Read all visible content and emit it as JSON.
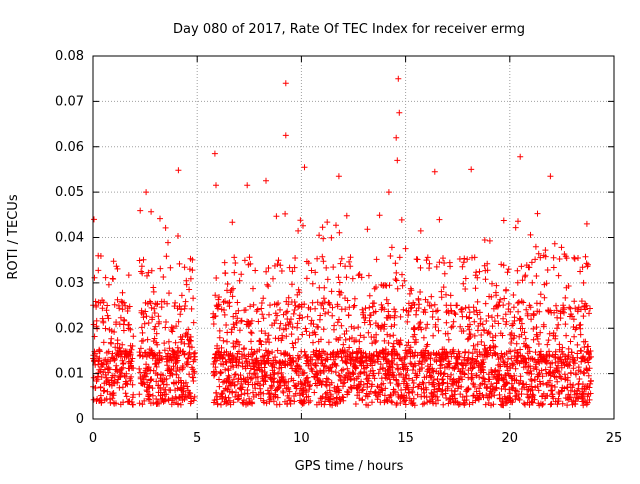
{
  "chart_data": {
    "type": "scatter",
    "title": "Day 080 of 2017, Rate Of TEC Index for receiver ermg",
    "xlabel": "GPS time / hours",
    "ylabel": "ROTI / TECUs",
    "xlim": [
      0,
      25
    ],
    "ylim": [
      0,
      0.08
    ],
    "x_ticks": [
      "0",
      "5",
      "10",
      "15",
      "20",
      "25"
    ],
    "y_ticks": [
      "0",
      "0.01",
      "0.02",
      "0.03",
      "0.04",
      "0.05",
      "0.06",
      "0.07",
      "0.08"
    ],
    "grid": true,
    "marker": "+",
    "color": "#ff0000",
    "data_gaps_hours": [
      [
        1.95,
        2.2
      ],
      [
        4.9,
        5.75
      ]
    ],
    "baseline_range": [
      0.003,
      0.015
    ],
    "notable_points": [
      {
        "x": 0.05,
        "y": 0.044
      },
      {
        "x": 2.55,
        "y": 0.05
      },
      {
        "x": 4.1,
        "y": 0.0548
      },
      {
        "x": 5.85,
        "y": 0.0585
      },
      {
        "x": 5.9,
        "y": 0.0515
      },
      {
        "x": 7.4,
        "y": 0.0515
      },
      {
        "x": 8.3,
        "y": 0.0525
      },
      {
        "x": 9.25,
        "y": 0.074
      },
      {
        "x": 9.25,
        "y": 0.0625
      },
      {
        "x": 10.15,
        "y": 0.0555
      },
      {
        "x": 11.8,
        "y": 0.0535
      },
      {
        "x": 14.2,
        "y": 0.05
      },
      {
        "x": 14.65,
        "y": 0.075
      },
      {
        "x": 14.7,
        "y": 0.0675
      },
      {
        "x": 14.55,
        "y": 0.062
      },
      {
        "x": 14.6,
        "y": 0.057
      },
      {
        "x": 16.4,
        "y": 0.0545
      },
      {
        "x": 18.15,
        "y": 0.055
      },
      {
        "x": 20.5,
        "y": 0.0578
      },
      {
        "x": 21.95,
        "y": 0.0535
      },
      {
        "x": 23.7,
        "y": 0.043
      }
    ]
  }
}
